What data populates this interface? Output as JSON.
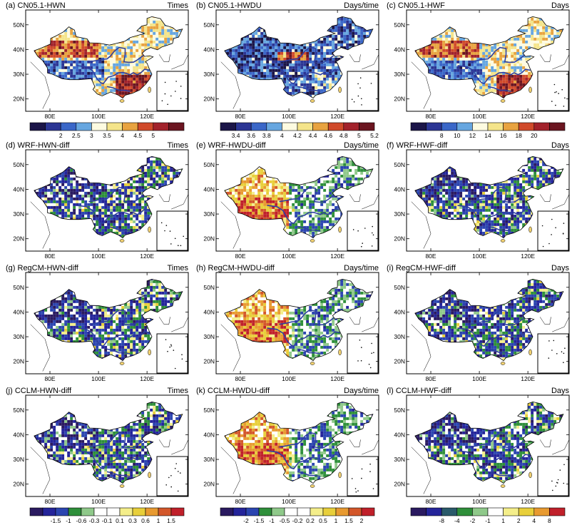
{
  "chart_data": [
    {
      "type": "heatmap",
      "title": "(a) CN05.1-HWN",
      "unit": "Times",
      "x_ticks": [
        "80E",
        "100E",
        "120E"
      ],
      "y_ticks": [
        "50N",
        "40N",
        "30N",
        "20N"
      ],
      "colorbar_labels": [
        "2",
        "2.5",
        "3",
        "3.5",
        "4",
        "4.5",
        "5"
      ],
      "colors": [
        "#1b1548",
        "#2b3594",
        "#3a67c8",
        "#66a6e0",
        "#fdfbe1",
        "#f4e48a",
        "#e8a340",
        "#d04a2a",
        "#a2222b",
        "#6b1520"
      ]
    },
    {
      "type": "heatmap",
      "title": "(b) CN05.1-HWDU",
      "unit": "Days/time",
      "x_ticks": [
        "80E",
        "100E",
        "120E"
      ],
      "y_ticks": [
        "50N",
        "40N",
        "30N",
        "20N"
      ],
      "colorbar_labels": [
        "3.4",
        "3.6",
        "3.8",
        "4",
        "4.2",
        "4.4",
        "4.6",
        "4.8",
        "5",
        "5.2"
      ],
      "colors": [
        "#1b1548",
        "#2b3594",
        "#3a67c8",
        "#66a6e0",
        "#fdfbe1",
        "#f4e48a",
        "#e8a340",
        "#d04a2a",
        "#a2222b",
        "#6b1520"
      ]
    },
    {
      "type": "heatmap",
      "title": "(c) CN05.1-HWF",
      "unit": "Days",
      "x_ticks": [
        "80E",
        "100E",
        "120E"
      ],
      "y_ticks": [
        "50N",
        "40N",
        "30N",
        "20N"
      ],
      "colorbar_labels": [
        "8",
        "10",
        "12",
        "14",
        "16",
        "18",
        "20"
      ],
      "colors": [
        "#1b1548",
        "#2b3594",
        "#3a67c8",
        "#66a6e0",
        "#fdfbe1",
        "#f4e48a",
        "#e8a340",
        "#d04a2a",
        "#a2222b",
        "#6b1520"
      ]
    },
    {
      "type": "heatmap",
      "title": "(d) WRF-HWN-diff",
      "unit": "Times",
      "x_ticks": [
        "80E",
        "100E",
        "120E"
      ],
      "y_ticks": [
        "50N",
        "40N",
        "30N",
        "20N"
      ]
    },
    {
      "type": "heatmap",
      "title": "(e) WRF-HWDU-diff",
      "unit": "Days/time",
      "x_ticks": [
        "80E",
        "100E",
        "120E"
      ],
      "y_ticks": [
        "50N",
        "40N",
        "30N",
        "20N"
      ]
    },
    {
      "type": "heatmap",
      "title": "(f) WRF-HWF-diff",
      "unit": "Days",
      "x_ticks": [
        "80E",
        "100E",
        "120E"
      ],
      "y_ticks": [
        "50N",
        "40N",
        "30N",
        "20N"
      ]
    },
    {
      "type": "heatmap",
      "title": "(g) RegCM-HWN-diff",
      "unit": "Times",
      "x_ticks": [
        "80E",
        "100E",
        "120E"
      ],
      "y_ticks": [
        "50N",
        "40N",
        "30N",
        "20N"
      ]
    },
    {
      "type": "heatmap",
      "title": "(h) RegCM-HWDU-diff",
      "unit": "Days/time",
      "x_ticks": [
        "80E",
        "100E",
        "120E"
      ],
      "y_ticks": [
        "50N",
        "40N",
        "30N",
        "20N"
      ]
    },
    {
      "type": "heatmap",
      "title": "(i) RegCM-HWF-diff",
      "unit": "Days",
      "x_ticks": [
        "80E",
        "100E",
        "120E"
      ],
      "y_ticks": [
        "50N",
        "40N",
        "30N",
        "20N"
      ]
    },
    {
      "type": "heatmap",
      "title": "(j) CCLM-HWN-diff",
      "unit": "Times",
      "x_ticks": [
        "80E",
        "100E",
        "120E"
      ],
      "y_ticks": [
        "50N",
        "40N",
        "30N",
        "20N"
      ],
      "colorbar_labels": [
        "-1.5",
        "-1",
        "-0.6",
        "-0.3",
        "-0.1",
        "0.1",
        "0.3",
        "0.6",
        "1",
        "1.5"
      ],
      "colors": [
        "#2a1a60",
        "#24249a",
        "#2b45b0",
        "#2e8f3a",
        "#8fc98a",
        "#ffffff",
        "#ffffff",
        "#f4ee8a",
        "#e8cf3a",
        "#e89a30",
        "#d3572a",
        "#c0202a"
      ]
    },
    {
      "type": "heatmap",
      "title": "(k) CCLM-HWDU-diff",
      "unit": "Days/time",
      "x_ticks": [
        "80E",
        "100E",
        "120E"
      ],
      "y_ticks": [
        "50N",
        "40N",
        "30N",
        "20N"
      ],
      "colorbar_labels": [
        "-2",
        "-1.5",
        "-1",
        "-0.5",
        "-0.2",
        "0.2",
        "0.5",
        "1",
        "1.5",
        "2"
      ],
      "colors": [
        "#2a1a60",
        "#24249a",
        "#2b45b0",
        "#2e8f3a",
        "#8fc98a",
        "#ffffff",
        "#ffffff",
        "#f4ee8a",
        "#e8cf3a",
        "#e89a30",
        "#d3572a",
        "#c0202a"
      ]
    },
    {
      "type": "heatmap",
      "title": "(l) CCLM-HWF-diff",
      "unit": "Days",
      "x_ticks": [
        "80E",
        "100E",
        "120E"
      ],
      "y_ticks": [
        "50N",
        "40N",
        "30N",
        "20N"
      ],
      "colorbar_labels": [
        "-8",
        "-4",
        "-2",
        "-1",
        "1",
        "2",
        "4",
        "8"
      ],
      "colors": [
        "#2a1a60",
        "#24249a",
        "#2a5a6a",
        "#2e8f3a",
        "#8fc98a",
        "#ffffff",
        "#f4ee8a",
        "#e8cf3a",
        "#e89a30",
        "#c0202a"
      ]
    }
  ],
  "colors": {
    "column_a_fill": [
      "#f7eba0",
      "#f0d070",
      "#e6a040",
      "#fdfbe1"
    ],
    "column_b_fill": [
      "#6f9fdc",
      "#3a67c8",
      "#fdfbe1",
      "#f4e48a"
    ],
    "diff_fill": [
      "#2a2a96",
      "#2e7a3a",
      "#8fc98a",
      "#f4e48a"
    ],
    "river": "#2e3fa0",
    "border": "#000000"
  }
}
